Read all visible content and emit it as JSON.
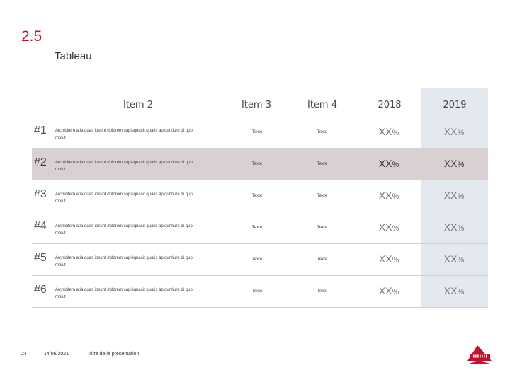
{
  "slide": {
    "section_number": "2.5",
    "subtitle": "Tableau"
  },
  "table": {
    "headers": [
      "Item 2",
      "Item 3",
      "Item 4",
      "2018",
      "2019"
    ],
    "highlight_column": "2019",
    "rows": [
      {
        "num": "#1",
        "desc": "Archicitem atia quas ipsunt dolorem sapisquasit quatis apiduntiure di quo molut",
        "item3": "Texte",
        "item4": "Texte",
        "v2018": "XX",
        "v2019": "XX",
        "highlight": false
      },
      {
        "num": "#2",
        "desc": "Archicitem atia quas ipsunt dolorem sapisquasit quatis apiduntiure di quo molut",
        "item3": "Texte",
        "item4": "Texte",
        "v2018": "XX",
        "v2019": "XX",
        "highlight": true
      },
      {
        "num": "#3",
        "desc": "Archicitem atia quas ipsunt dolorem sapisquasit quatis apiduntiure di quo molut",
        "item3": "Texte",
        "item4": "Texte",
        "v2018": "XX",
        "v2019": "XX",
        "highlight": false
      },
      {
        "num": "#4",
        "desc": "Archicitem atia quas ipsunt dolorem sapisquasit quatis apiduntiure di quo molut",
        "item3": "Texte",
        "item4": "Texte",
        "v2018": "XX",
        "v2019": "XX",
        "highlight": false
      },
      {
        "num": "#5",
        "desc": "Archicitem atia quas ipsunt dolorem sapisquasit quatis apiduntiure di quo molut",
        "item3": "Texte",
        "item4": "Texte",
        "v2018": "XX",
        "v2019": "XX",
        "highlight": false
      },
      {
        "num": "#6",
        "desc": "Archicitem atia quas ipsunt dolorem sapisquasit quatis apiduntiure di quo molut",
        "item3": "Texte",
        "item4": "Texte",
        "v2018": "XX",
        "v2019": "XX",
        "highlight": false
      }
    ],
    "percent_sign": "%"
  },
  "footer": {
    "page_number": "24",
    "date": "14/06/2021",
    "presentation_title": "Titre de la présentation"
  },
  "colors": {
    "accent": "#c8102e",
    "highlight_row": "#d9d0d1",
    "highlight_column": "#e4e8ef"
  },
  "logo": {
    "icon": "brand-logo-icon"
  }
}
